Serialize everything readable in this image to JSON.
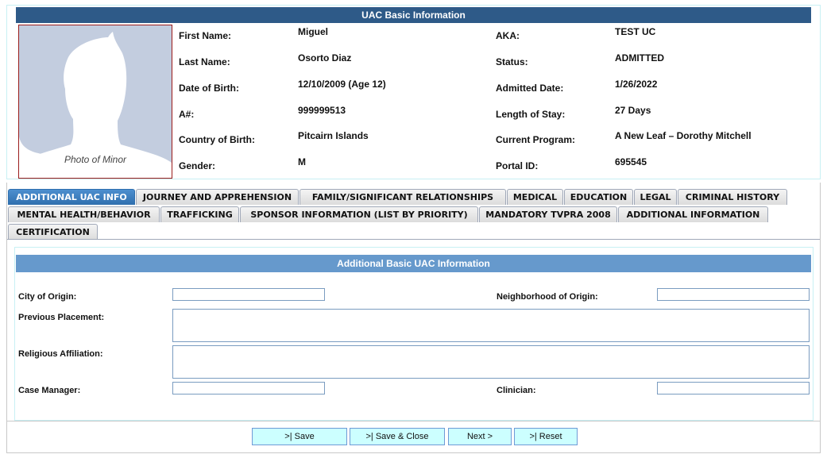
{
  "header": {
    "title": "UAC Basic Information"
  },
  "photo": {
    "caption": "Photo of Minor"
  },
  "left_fields": [
    {
      "label": "First Name:",
      "value": "Miguel"
    },
    {
      "label": "Last Name:",
      "value": "Osorto Diaz"
    },
    {
      "label": "Date of Birth:",
      "value": "12/10/2009 (Age 12)"
    },
    {
      "label": "A#:",
      "value": "999999513"
    },
    {
      "label": "Country of Birth:",
      "value": "Pitcairn Islands"
    },
    {
      "label": "Gender:",
      "value": "M"
    }
  ],
  "right_fields": [
    {
      "label": "AKA:",
      "value": "TEST UC"
    },
    {
      "label": "Status:",
      "value": "ADMITTED"
    },
    {
      "label": "Admitted Date:",
      "value": "1/26/2022"
    },
    {
      "label": "Length of Stay:",
      "value": "27 Days"
    },
    {
      "label": "Current Program:",
      "value": "A New Leaf – Dorothy Mitchell"
    },
    {
      "label": "Portal ID:",
      "value": "695545"
    }
  ],
  "tabs": [
    "ADDITIONAL UAC INFO",
    "JOURNEY AND APPREHENSION",
    "FAMILY/SIGNIFICANT RELATIONSHIPS",
    "MEDICAL",
    "EDUCATION",
    "LEGAL",
    "CRIMINAL HISTORY",
    "MENTAL HEALTH/BEHAVIOR",
    "TRAFFICKING",
    "SPONSOR INFORMATION (LIST BY PRIORITY)",
    "MANDATORY TVPRA 2008",
    "ADDITIONAL INFORMATION",
    "CERTIFICATION"
  ],
  "active_tab": "ADDITIONAL UAC INFO",
  "section": {
    "title": "Additional Basic UAC Information"
  },
  "form": {
    "city_of_origin": {
      "label": "City of Origin:",
      "value": ""
    },
    "neighborhood_of_origin": {
      "label": "Neighborhood of Origin:",
      "value": ""
    },
    "previous_placement": {
      "label": "Previous Placement:",
      "value": ""
    },
    "religious_affiliation": {
      "label": "Religious Affiliation:",
      "value": ""
    },
    "case_manager": {
      "label": "Case Manager:",
      "value": ""
    },
    "clinician": {
      "label": "Clinician:",
      "value": ""
    }
  },
  "buttons": {
    "save": ">| Save",
    "save_close": ">| Save & Close",
    "next": "Next >",
    "reset": ">| Reset"
  },
  "colors": {
    "header": "#2e5a88",
    "section": "#6699cc",
    "active_tab": "#2f6fae",
    "button": "#ccffff"
  }
}
